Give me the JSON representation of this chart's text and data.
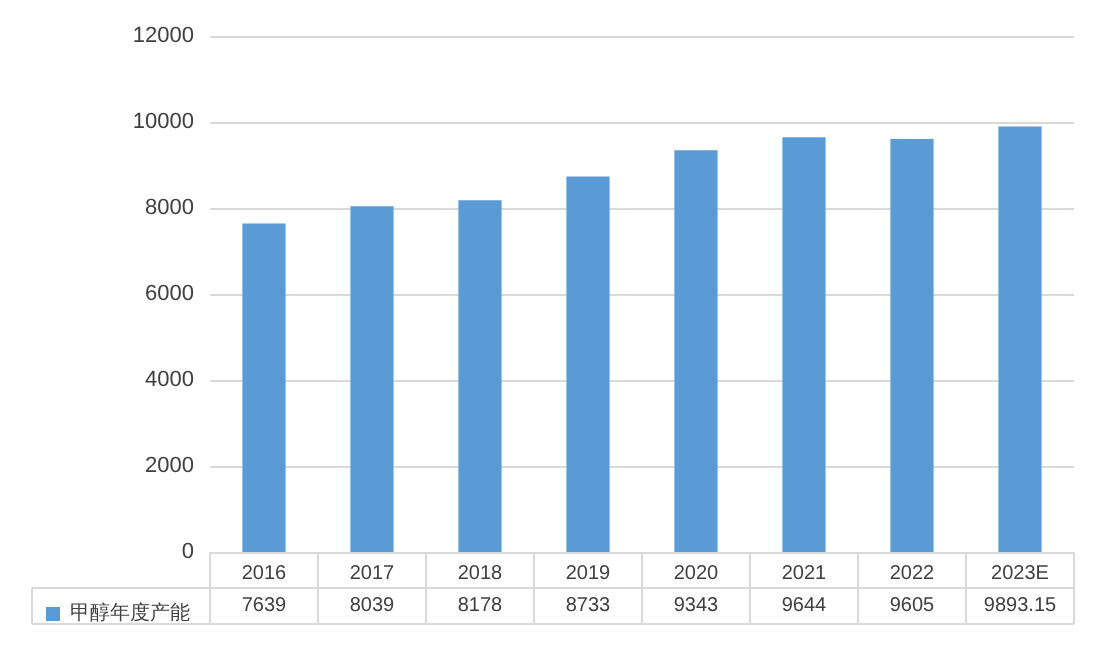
{
  "chart_data": {
    "type": "bar",
    "categories": [
      "2016",
      "2017",
      "2018",
      "2019",
      "2020",
      "2021",
      "2022",
      "2023E"
    ],
    "series": [
      {
        "name": "甲醇年度产能",
        "color": "#5b9bd5",
        "values": [
          7639,
          8039,
          8178,
          8733,
          9343,
          9644,
          9605,
          9893.15
        ]
      }
    ],
    "ylim": [
      0,
      12000
    ],
    "yticks": [
      0,
      2000,
      4000,
      6000,
      8000,
      10000,
      12000
    ],
    "grid": "y",
    "legend": "bottom left",
    "data_labels": true
  }
}
